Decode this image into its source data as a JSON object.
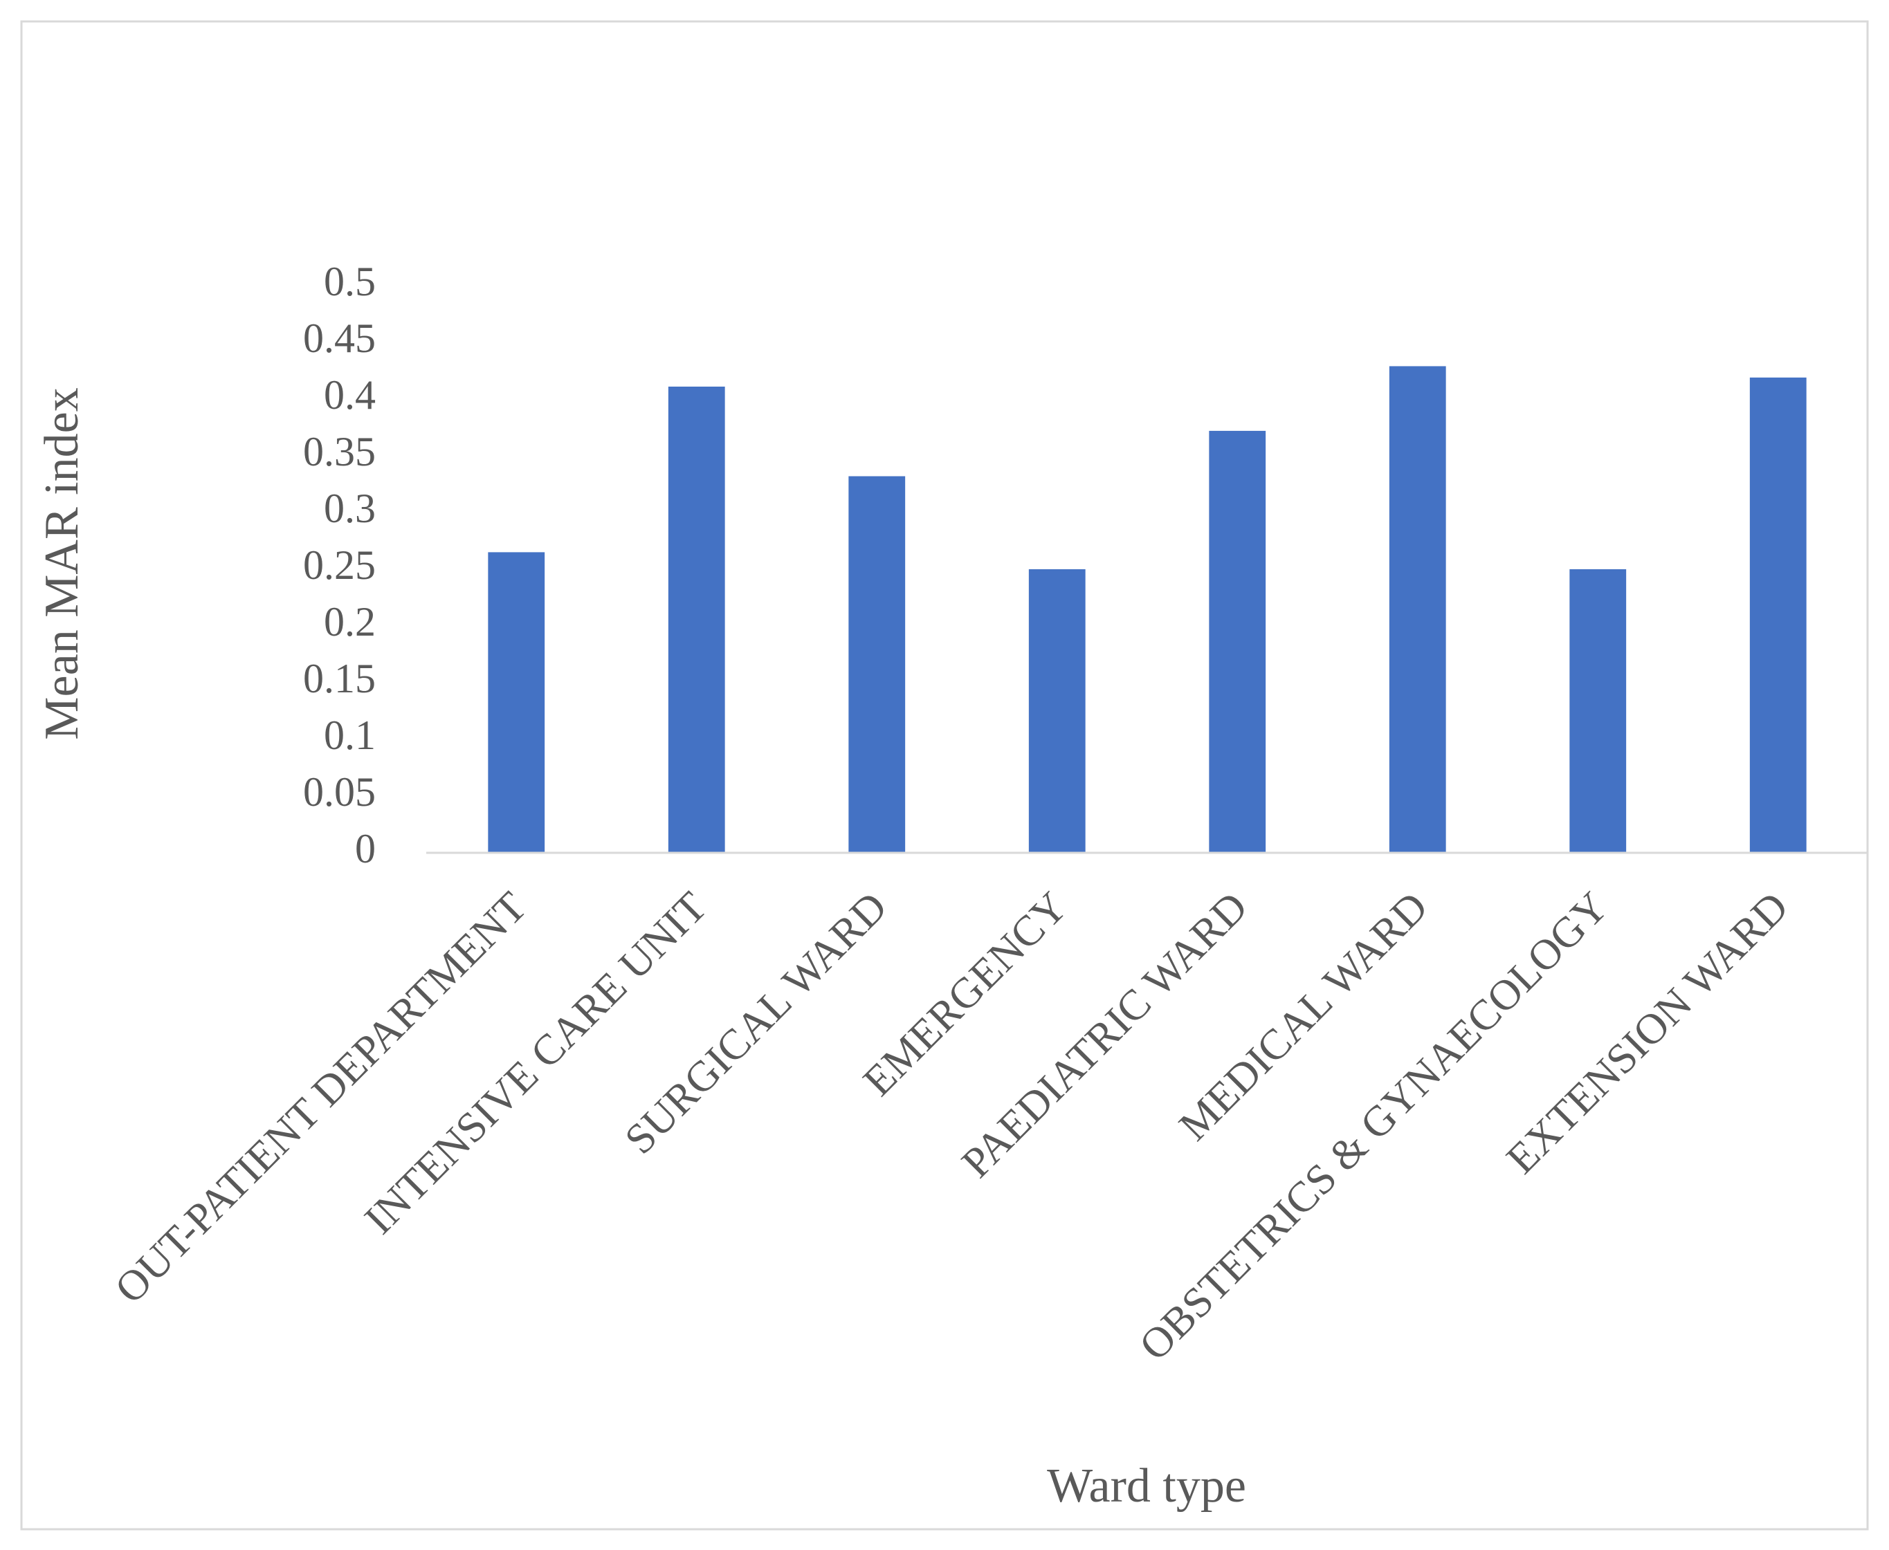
{
  "chart_data": {
    "type": "bar",
    "x_label": "Ward type",
    "y_label": "Mean MAR index",
    "categories": [
      "OUT-PATIENT DEPARTMENT",
      "INTENSIVE CARE UNIT",
      "SURGICAL WARD",
      "EMERGENCY",
      "PAEDIATRIC WARD",
      "MEDICAL WARD",
      "OBSTETRICS & GYNAECOLOGY",
      "EXTENSION WARD"
    ],
    "values": [
      0.265,
      0.411,
      0.332,
      0.25,
      0.372,
      0.429,
      0.25,
      0.419
    ],
    "color": "#4472c4",
    "ylim": [
      0,
      0.5
    ],
    "yticks": [
      0,
      0.05,
      0.1,
      0.15,
      0.2,
      0.25,
      0.3,
      0.35,
      0.4,
      0.45,
      0.5
    ],
    "grid": false
  }
}
